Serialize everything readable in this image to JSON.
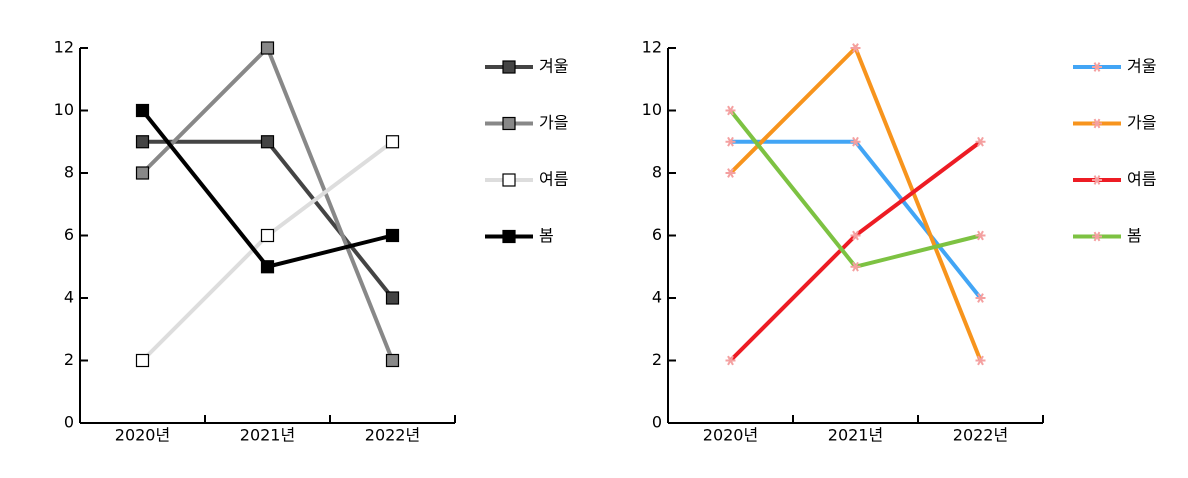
{
  "chart_data": [
    {
      "type": "line",
      "marker": "square",
      "categories": [
        "2020년",
        "2021년",
        "2022년"
      ],
      "ylim": [
        0,
        12
      ],
      "yticks": [
        0,
        2,
        4,
        6,
        8,
        10,
        12
      ],
      "grid": false,
      "legend": "right",
      "series": [
        {
          "name": "겨울",
          "color": "#444444",
          "marker_color": "#444444",
          "values": [
            9,
            9,
            4
          ]
        },
        {
          "name": "가을",
          "color": "#888888",
          "marker_color": "#888888",
          "values": [
            8,
            12,
            2
          ]
        },
        {
          "name": "여름",
          "color": "#dddddd",
          "marker_color": "#ffffff",
          "values": [
            2,
            6,
            9
          ]
        },
        {
          "name": "봄",
          "color": "#000000",
          "marker_color": "#000000",
          "values": [
            10,
            5,
            6
          ]
        }
      ]
    },
    {
      "type": "line",
      "marker": "asterisk",
      "categories": [
        "2020년",
        "2021년",
        "2022년"
      ],
      "ylim": [
        0,
        12
      ],
      "yticks": [
        0,
        2,
        4,
        6,
        8,
        10,
        12
      ],
      "grid": false,
      "legend": "right",
      "series": [
        {
          "name": "겨울",
          "color": "#42a5f5",
          "marker_color": "#f4a0a0",
          "values": [
            9,
            9,
            4
          ]
        },
        {
          "name": "가을",
          "color": "#f7941d",
          "marker_color": "#f4a0a0",
          "values": [
            8,
            12,
            2
          ]
        },
        {
          "name": "여름",
          "color": "#ed1c24",
          "marker_color": "#f4a0a0",
          "values": [
            2,
            6,
            9
          ]
        },
        {
          "name": "봄",
          "color": "#7dc242",
          "marker_color": "#f4a0a0",
          "values": [
            10,
            5,
            6
          ]
        }
      ]
    }
  ]
}
